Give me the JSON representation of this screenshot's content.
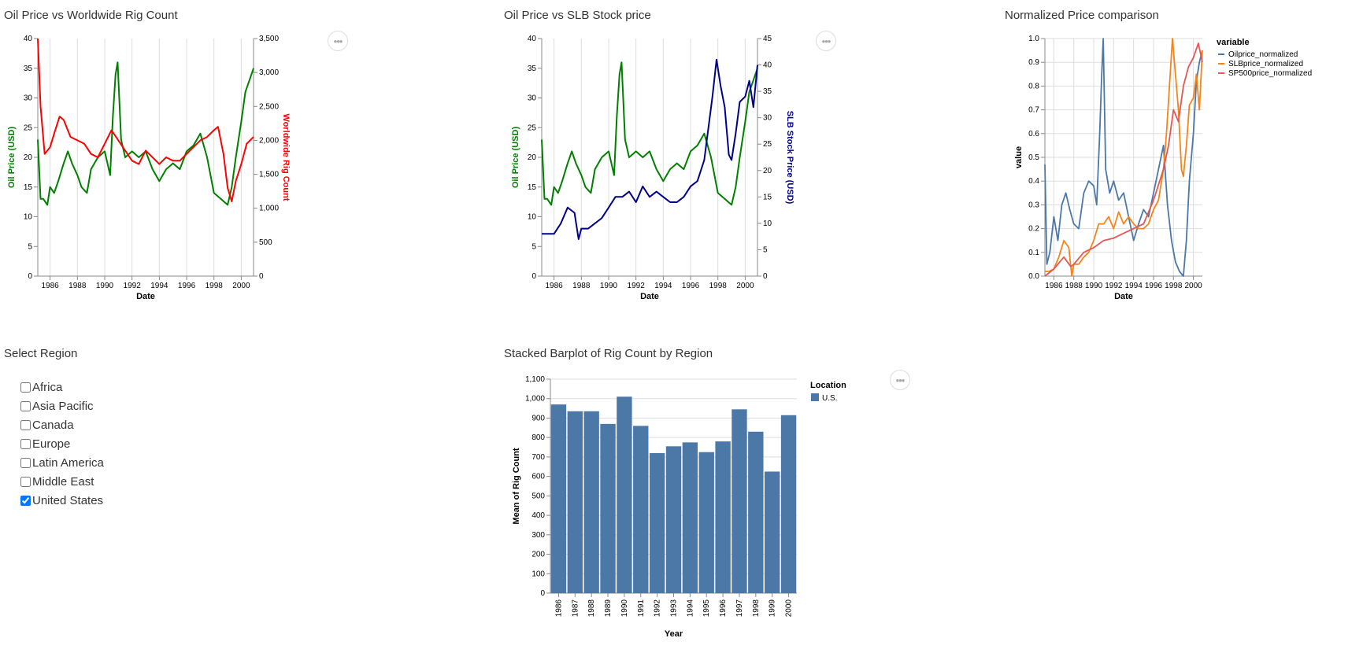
{
  "panels": {
    "chart1_title": "Oil Price vs Worldwide Rig Count",
    "chart2_title": "Oil Price vs SLB Stock price",
    "chart3_title": "Normalized Price comparison",
    "region_title": "Select Region",
    "chart4_title": "Stacked Barplot of Rig Count by Region",
    "more_label": "•••"
  },
  "colors": {
    "oil": "#008000",
    "rig": "#ff0000",
    "slb": "#00008b",
    "oil_norm": "#4c78a8",
    "slb_norm": "#f58518",
    "sp500_norm": "#e45756",
    "bar": "#4c78a8"
  },
  "regions": [
    {
      "label": "Africa",
      "checked": false
    },
    {
      "label": "Asia Pacific",
      "checked": false
    },
    {
      "label": "Canada",
      "checked": false
    },
    {
      "label": "Europe",
      "checked": false
    },
    {
      "label": "Latin America",
      "checked": false
    },
    {
      "label": "Middle East",
      "checked": false
    },
    {
      "label": "United States",
      "checked": true
    }
  ],
  "chart_data": [
    {
      "type": "line",
      "title": "Oil Price vs Worldwide Rig Count",
      "xlabel": "Date",
      "ylabel": "Oil Price (USD)",
      "y2label": "Worldwide Rig Count",
      "xlim": [
        1985.1,
        2000.9
      ],
      "ylim": [
        0,
        40
      ],
      "y2lim": [
        0,
        3500
      ],
      "x_ticks": [
        "1986",
        "1988",
        "1990",
        "1992",
        "1994",
        "1996",
        "1998",
        "2000"
      ],
      "y_ticks": [
        "0",
        "5",
        "10",
        "15",
        "20",
        "25",
        "30",
        "35",
        "40"
      ],
      "y2_ticks": [
        "0",
        "500",
        "1,000",
        "1,500",
        "2,000",
        "2,500",
        "3,000",
        "3,500"
      ],
      "grid": true,
      "series": [
        {
          "name": "Oil Price (USD)",
          "axis": "left",
          "x": [
            1985.1,
            1985.3,
            1985.5,
            1985.8,
            1986.0,
            1986.3,
            1986.6,
            1987.0,
            1987.3,
            1987.6,
            1988.0,
            1988.3,
            1988.7,
            1989.0,
            1989.5,
            1990.0,
            1990.4,
            1990.6,
            1990.8,
            1990.95,
            1991.2,
            1991.5,
            1992.0,
            1992.5,
            1993.0,
            1993.5,
            1994.0,
            1994.5,
            1995.0,
            1995.5,
            1996.0,
            1996.5,
            1997.0,
            1997.5,
            1998.0,
            1998.5,
            1999.0,
            1999.3,
            1999.6,
            2000.0,
            2000.3,
            2000.6,
            2000.9
          ],
          "values": [
            23,
            13,
            13,
            12,
            15,
            14,
            16,
            19,
            21,
            19,
            17,
            15,
            14,
            18,
            20,
            21,
            17,
            27,
            34,
            36,
            23,
            20,
            21,
            20,
            21,
            18,
            16,
            18,
            19,
            18,
            21,
            22,
            24,
            20,
            14,
            13,
            12,
            15,
            20,
            26,
            31,
            33,
            35
          ]
        },
        {
          "name": "Worldwide Rig Count",
          "axis": "right",
          "x": [
            1985.1,
            1985.3,
            1985.6,
            1986.0,
            1986.3,
            1986.7,
            1987.0,
            1987.5,
            1988.0,
            1988.5,
            1989.0,
            1989.5,
            1990.0,
            1990.5,
            1991.0,
            1991.5,
            1992.0,
            1992.5,
            1993.0,
            1993.5,
            1994.0,
            1994.5,
            1995.0,
            1995.5,
            1996.0,
            1996.5,
            1997.0,
            1997.5,
            1998.0,
            1998.3,
            1998.7,
            1999.0,
            1999.3,
            1999.6,
            2000.0,
            2000.4,
            2000.9
          ],
          "values": [
            3500,
            2500,
            1800,
            1900,
            2100,
            2350,
            2300,
            2050,
            2000,
            1950,
            1800,
            1750,
            1950,
            2150,
            2000,
            1850,
            1700,
            1650,
            1850,
            1750,
            1650,
            1750,
            1700,
            1700,
            1800,
            1900,
            2000,
            2050,
            2150,
            2200,
            1800,
            1300,
            1100,
            1400,
            1650,
            1950,
            2050
          ]
        }
      ]
    },
    {
      "type": "line",
      "title": "Oil Price vs SLB Stock price",
      "xlabel": "Date",
      "ylabel": "Oil Price (USD)",
      "y2label": "SLB Stock Price (USD)",
      "xlim": [
        1985.1,
        2000.9
      ],
      "ylim": [
        0,
        40
      ],
      "y2lim": [
        0,
        45
      ],
      "x_ticks": [
        "1986",
        "1988",
        "1990",
        "1992",
        "1994",
        "1996",
        "1998",
        "2000"
      ],
      "y_ticks": [
        "0",
        "5",
        "10",
        "15",
        "20",
        "25",
        "30",
        "35",
        "40"
      ],
      "y2_ticks": [
        "0",
        "5",
        "10",
        "15",
        "20",
        "25",
        "30",
        "35",
        "40",
        "45"
      ],
      "grid": true,
      "series": [
        {
          "name": "Oil Price (USD)",
          "axis": "left",
          "x": [
            1985.1,
            1985.3,
            1985.5,
            1985.8,
            1986.0,
            1986.3,
            1986.6,
            1987.0,
            1987.3,
            1987.6,
            1988.0,
            1988.3,
            1988.7,
            1989.0,
            1989.5,
            1990.0,
            1990.4,
            1990.6,
            1990.8,
            1990.95,
            1991.2,
            1991.5,
            1992.0,
            1992.5,
            1993.0,
            1993.5,
            1994.0,
            1994.5,
            1995.0,
            1995.5,
            1996.0,
            1996.5,
            1997.0,
            1997.5,
            1998.0,
            1998.5,
            1999.0,
            1999.3,
            1999.6,
            2000.0,
            2000.3,
            2000.6,
            2000.9
          ],
          "values": [
            23,
            13,
            13,
            12,
            15,
            14,
            16,
            19,
            21,
            19,
            17,
            15,
            14,
            18,
            20,
            21,
            17,
            27,
            34,
            36,
            23,
            20,
            21,
            20,
            21,
            18,
            16,
            18,
            19,
            18,
            21,
            22,
            24,
            20,
            14,
            13,
            12,
            15,
            20,
            26,
            31,
            33,
            35
          ]
        },
        {
          "name": "SLB Stock Price (USD)",
          "axis": "right",
          "x": [
            1985.1,
            1985.5,
            1986.0,
            1986.5,
            1987.0,
            1987.5,
            1987.8,
            1988.0,
            1988.5,
            1989.0,
            1989.5,
            1990.0,
            1990.5,
            1991.0,
            1991.5,
            1992.0,
            1992.5,
            1993.0,
            1993.5,
            1994.0,
            1994.5,
            1995.0,
            1995.5,
            1996.0,
            1996.5,
            1997.0,
            1997.3,
            1997.6,
            1997.9,
            1998.2,
            1998.5,
            1998.8,
            1999.0,
            1999.3,
            1999.6,
            2000.0,
            2000.3,
            2000.6,
            2000.9
          ],
          "values": [
            8,
            8,
            8,
            10,
            13,
            12,
            7,
            9,
            9,
            10,
            11,
            13,
            15,
            15,
            16,
            14,
            17,
            15,
            16,
            15,
            14,
            14,
            15,
            17,
            18,
            22,
            28,
            34,
            41,
            36,
            32,
            23,
            22,
            27,
            33,
            34,
            37,
            32,
            40
          ]
        }
      ]
    },
    {
      "type": "line",
      "title": "Normalized Price comparison",
      "xlabel": "Date",
      "ylabel": "value",
      "legend_title": "variable",
      "legend_position": "right",
      "xlim": [
        1985.1,
        2000.9
      ],
      "ylim": [
        0,
        1
      ],
      "x_ticks": [
        "1986",
        "1988",
        "1990",
        "1992",
        "1994",
        "1996",
        "1998",
        "2000"
      ],
      "y_ticks": [
        "0.0",
        "0.1",
        "0.2",
        "0.3",
        "0.4",
        "0.5",
        "0.6",
        "0.7",
        "0.8",
        "0.9",
        "1.0"
      ],
      "grid": true,
      "series": [
        {
          "name": "Oilprice_normalized",
          "x": [
            1985.1,
            1985.3,
            1985.6,
            1986.0,
            1986.4,
            1986.8,
            1987.2,
            1987.6,
            1988.0,
            1988.5,
            1989.0,
            1989.5,
            1990.0,
            1990.3,
            1990.6,
            1990.8,
            1990.95,
            1991.2,
            1991.6,
            1992.0,
            1992.5,
            1993.0,
            1993.5,
            1994.0,
            1994.5,
            1995.0,
            1995.5,
            1996.0,
            1996.5,
            1997.0,
            1997.4,
            1997.8,
            1998.2,
            1998.6,
            1999.0,
            1999.3,
            1999.6,
            2000.0,
            2000.3,
            2000.6,
            2000.9
          ],
          "values": [
            0.47,
            0.05,
            0.1,
            0.25,
            0.15,
            0.3,
            0.35,
            0.28,
            0.22,
            0.2,
            0.35,
            0.4,
            0.38,
            0.3,
            0.6,
            0.85,
            1.0,
            0.45,
            0.35,
            0.4,
            0.32,
            0.35,
            0.25,
            0.15,
            0.22,
            0.28,
            0.25,
            0.35,
            0.45,
            0.55,
            0.3,
            0.15,
            0.06,
            0.02,
            0.0,
            0.15,
            0.4,
            0.6,
            0.82,
            0.9,
            0.95
          ]
        },
        {
          "name": "SLBprice_normalized",
          "x": [
            1985.1,
            1985.5,
            1986.0,
            1986.5,
            1987.0,
            1987.5,
            1987.8,
            1988.0,
            1988.5,
            1989.0,
            1989.5,
            1990.0,
            1990.5,
            1991.0,
            1991.5,
            1992.0,
            1992.5,
            1993.0,
            1993.5,
            1994.0,
            1994.5,
            1995.0,
            1995.5,
            1996.0,
            1996.5,
            1997.0,
            1997.3,
            1997.6,
            1997.9,
            1998.2,
            1998.5,
            1998.8,
            1999.0,
            1999.3,
            1999.6,
            2000.0,
            2000.3,
            2000.6,
            2000.9
          ],
          "values": [
            0.02,
            0.02,
            0.03,
            0.08,
            0.15,
            0.12,
            0.0,
            0.05,
            0.05,
            0.08,
            0.1,
            0.15,
            0.22,
            0.22,
            0.25,
            0.2,
            0.27,
            0.22,
            0.25,
            0.22,
            0.2,
            0.2,
            0.22,
            0.28,
            0.32,
            0.45,
            0.6,
            0.8,
            1.0,
            0.85,
            0.7,
            0.45,
            0.42,
            0.55,
            0.72,
            0.75,
            0.85,
            0.7,
            0.95
          ]
        },
        {
          "name": "SP500price_normalized",
          "x": [
            1985.1,
            1986.0,
            1987.0,
            1987.7,
            1988.0,
            1989.0,
            1990.0,
            1991.0,
            1992.0,
            1993.0,
            1994.0,
            1995.0,
            1996.0,
            1997.0,
            1997.5,
            1998.0,
            1998.5,
            1999.0,
            1999.5,
            2000.0,
            2000.5,
            2000.9
          ],
          "values": [
            0.0,
            0.03,
            0.08,
            0.04,
            0.05,
            0.1,
            0.12,
            0.15,
            0.16,
            0.18,
            0.2,
            0.22,
            0.32,
            0.45,
            0.55,
            0.7,
            0.65,
            0.8,
            0.88,
            0.92,
            0.98,
            0.9
          ]
        }
      ]
    },
    {
      "type": "bar",
      "title": "Stacked Barplot of Rig Count by Region",
      "xlabel": "Year",
      "ylabel": "Mean of Rig Count",
      "legend_title": "Location",
      "legend_position": "right",
      "ylim": [
        0,
        1100
      ],
      "y_ticks": [
        "0",
        "100",
        "200",
        "300",
        "400",
        "500",
        "600",
        "700",
        "800",
        "900",
        "1,000",
        "1,100"
      ],
      "categories": [
        "1986",
        "1987",
        "1988",
        "1989",
        "1990",
        "1991",
        "1992",
        "1993",
        "1994",
        "1995",
        "1996",
        "1997",
        "1998",
        "1999",
        "2000"
      ],
      "series": [
        {
          "name": "U.S.",
          "values": [
            970,
            935,
            935,
            870,
            1010,
            860,
            720,
            755,
            775,
            725,
            780,
            945,
            830,
            625,
            915
          ]
        }
      ]
    }
  ]
}
